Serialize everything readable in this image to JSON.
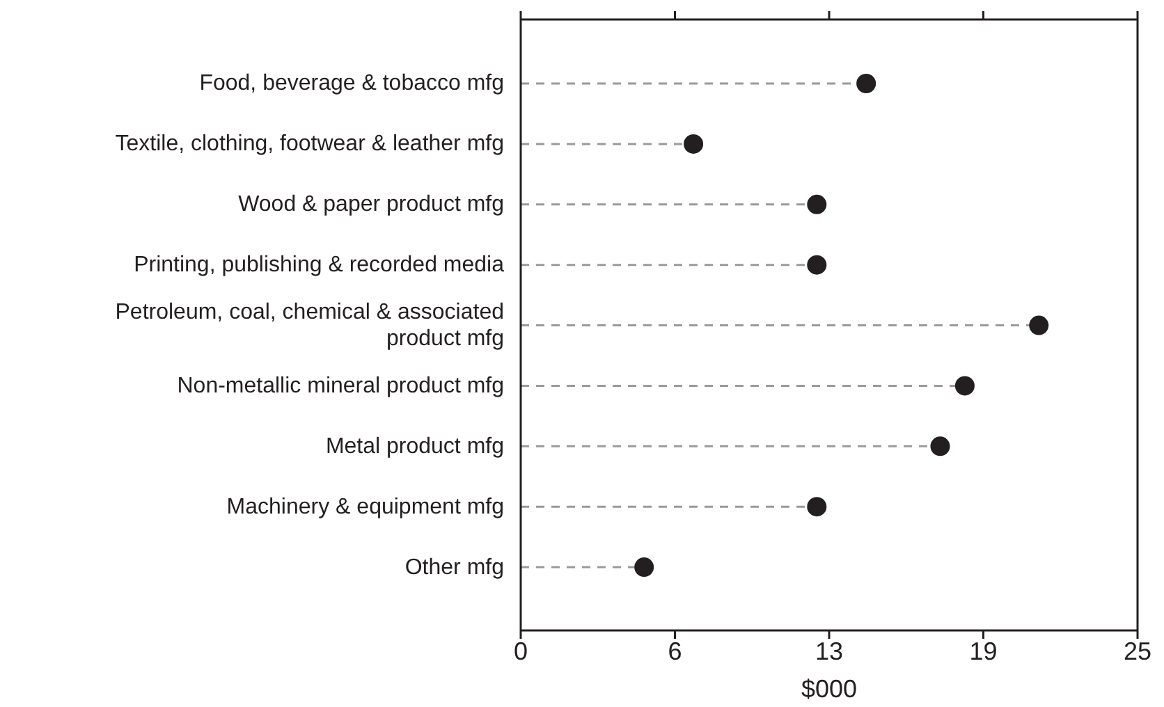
{
  "chart_data": {
    "type": "lollipop",
    "orientation": "horizontal",
    "xlabel": "$000",
    "categories": [
      "Food, beverage & tobacco mfg",
      "Textile, clothing, footwear & leather mfg",
      "Wood & paper product mfg",
      "Printing, publishing & recorded media",
      "Petroleum, coal, chemical & associated product mfg",
      "Non-metallic mineral product mfg",
      "Metal product mfg",
      "Machinery & equipment mfg",
      "Other mfg"
    ],
    "values": [
      14,
      7,
      12,
      12,
      21,
      18,
      17,
      12,
      5
    ],
    "color": "#231f20",
    "line_style": "dashed",
    "marker": "circle",
    "grid": false,
    "legend": false,
    "xlim": [
      0,
      25
    ],
    "xticks": [
      0,
      {
        "value": 6.25,
        "label": "6"
      },
      {
        "value": 12.5,
        "label": "13"
      },
      {
        "value": 18.75,
        "label": "19"
      },
      25
    ]
  }
}
